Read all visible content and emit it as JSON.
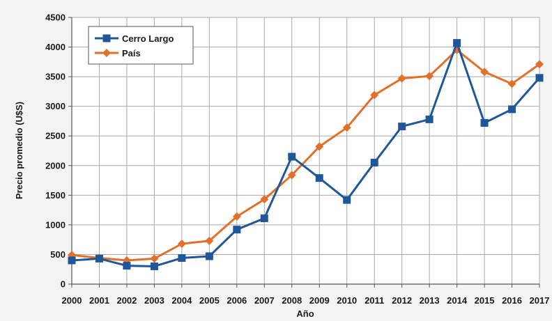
{
  "chart_data": {
    "type": "line",
    "xlabel": "Año",
    "ylabel": "Precio promedio (U$S)",
    "categories": [
      "2000",
      "2001",
      "2002",
      "2003",
      "2004",
      "2005",
      "2006",
      "2007",
      "2008",
      "2009",
      "2010",
      "2011",
      "2012",
      "2013",
      "2014",
      "2015",
      "2016",
      "2017"
    ],
    "ylim": [
      0,
      4500
    ],
    "yticks": [
      0,
      500,
      1000,
      1500,
      2000,
      2500,
      3000,
      3500,
      4000,
      4500
    ],
    "grid": true,
    "legend_position": "top-left",
    "series": [
      {
        "name": "Cerro Largo",
        "color": "#1f5799",
        "marker": "square",
        "values": [
          400,
          430,
          310,
          300,
          440,
          470,
          920,
          1110,
          2150,
          1790,
          1420,
          2050,
          2660,
          2780,
          4070,
          2720,
          2950,
          3480
        ]
      },
      {
        "name": "País",
        "color": "#e0702a",
        "marker": "diamond",
        "values": [
          490,
          440,
          400,
          430,
          680,
          730,
          1140,
          1430,
          1840,
          2320,
          2640,
          3190,
          3470,
          3510,
          3950,
          3580,
          3380,
          3710
        ]
      }
    ]
  }
}
